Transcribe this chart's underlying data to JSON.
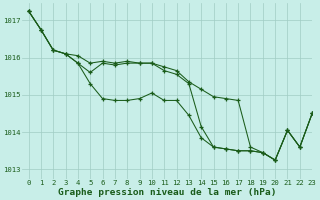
{
  "bg_color": "#c8eee8",
  "grid_color": "#a0ccc4",
  "line_color": "#1a5c1a",
  "marker_color": "#1a5c1a",
  "xlabel": "Graphe pression niveau de la mer (hPa)",
  "xlabel_color": "#1a5c1a",
  "tick_color": "#1a5c1a",
  "ylabel_ticks": [
    1013,
    1014,
    1015,
    1016,
    1017
  ],
  "xlim": [
    -0.5,
    23
  ],
  "ylim": [
    1012.75,
    1017.45
  ],
  "series1": [
    1017.25,
    1016.75,
    1016.2,
    1016.1,
    1015.85,
    1015.3,
    1014.9,
    1014.85,
    1014.85,
    1014.9,
    1015.05,
    1014.85,
    1014.85,
    1014.45,
    1013.85,
    1013.6,
    1013.55,
    1013.5,
    1013.5,
    1013.45,
    1013.25,
    1014.05,
    1013.6,
    1014.5
  ],
  "series2": [
    1017.25,
    1016.75,
    1016.2,
    1016.1,
    1015.85,
    1015.6,
    1015.85,
    1015.8,
    1015.85,
    1015.85,
    1015.85,
    1015.65,
    1015.55,
    1015.3,
    1014.15,
    1013.6,
    1013.55,
    1013.5,
    1013.5,
    1013.45,
    1013.25,
    1014.05,
    1013.6,
    1014.5
  ],
  "series3": [
    1017.25,
    1016.75,
    1016.2,
    1016.1,
    1016.05,
    1015.85,
    1015.9,
    1015.85,
    1015.9,
    1015.85,
    1015.85,
    1015.75,
    1015.65,
    1015.35,
    1015.15,
    1014.95,
    1014.9,
    1014.85,
    1013.6,
    1013.45,
    1013.25,
    1014.05,
    1013.6,
    1014.5
  ],
  "xtick_labels": [
    "0",
    "1",
    "2",
    "3",
    "4",
    "5",
    "6",
    "7",
    "8",
    "9",
    "10",
    "11",
    "12",
    "13",
    "14",
    "15",
    "16",
    "17",
    "18",
    "19",
    "20",
    "21",
    "22",
    "23"
  ],
  "tick_fontsize": 5.2,
  "xlabel_fontsize": 6.8
}
